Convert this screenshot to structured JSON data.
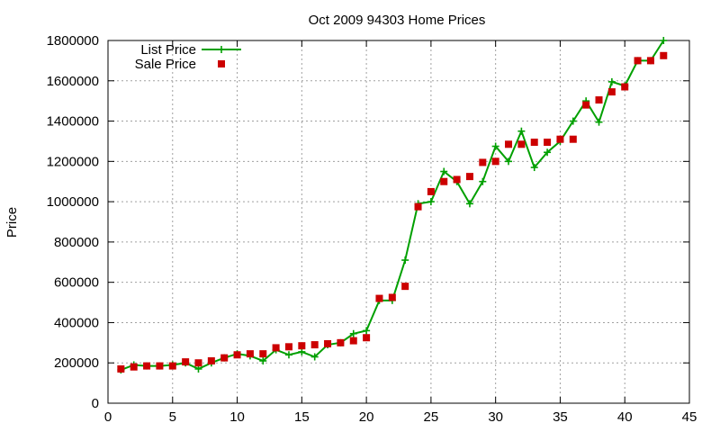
{
  "chart_data": {
    "type": "line",
    "title": "Oct 2009 94303 Home Prices",
    "xlabel": "",
    "ylabel": "Price",
    "xlim": [
      0,
      45
    ],
    "ylim": [
      0,
      1800000
    ],
    "x_ticks": [
      "0",
      "5",
      "10",
      "15",
      "20",
      "25",
      "30",
      "35",
      "40",
      "45"
    ],
    "y_ticks": [
      "0",
      "200000",
      "400000",
      "600000",
      "800000",
      "1000000",
      "1200000",
      "1400000",
      "1600000",
      "1800000"
    ],
    "grid": true,
    "legend_position": "top-left",
    "series": [
      {
        "name": "List Price",
        "style": "line+cross",
        "color": "#00a000",
        "x": [
          1,
          2,
          3,
          4,
          5,
          6,
          7,
          8,
          9,
          10,
          11,
          12,
          13,
          14,
          15,
          16,
          17,
          18,
          19,
          20,
          21,
          22,
          23,
          24,
          25,
          26,
          27,
          28,
          29,
          30,
          31,
          32,
          33,
          34,
          35,
          36,
          37,
          38,
          39,
          40,
          41,
          42,
          43
        ],
        "y": [
          165000,
          190000,
          185000,
          185000,
          190000,
          200000,
          170000,
          200000,
          225000,
          245000,
          235000,
          210000,
          265000,
          240000,
          255000,
          230000,
          290000,
          300000,
          345000,
          360000,
          510000,
          510000,
          710000,
          990000,
          1000000,
          1150000,
          1100000,
          990000,
          1100000,
          1275000,
          1200000,
          1350000,
          1170000,
          1245000,
          1300000,
          1400000,
          1500000,
          1395000,
          1595000,
          1575000,
          1700000,
          1700000,
          1800000
        ]
      },
      {
        "name": "Sale Price",
        "style": "square",
        "color": "#cc0000",
        "x": [
          1,
          2,
          3,
          4,
          5,
          6,
          7,
          8,
          9,
          10,
          11,
          12,
          13,
          14,
          15,
          16,
          17,
          18,
          19,
          20,
          21,
          22,
          23,
          24,
          25,
          26,
          27,
          28,
          29,
          30,
          31,
          32,
          33,
          34,
          35,
          36,
          37,
          38,
          39,
          40,
          41,
          42,
          43
        ],
        "y": [
          170000,
          180000,
          185000,
          185000,
          185000,
          205000,
          200000,
          210000,
          225000,
          240000,
          245000,
          245000,
          275000,
          280000,
          285000,
          290000,
          295000,
          300000,
          310000,
          325000,
          520000,
          525000,
          580000,
          975000,
          1050000,
          1100000,
          1110000,
          1125000,
          1195000,
          1200000,
          1285000,
          1285000,
          1295000,
          1295000,
          1310000,
          1310000,
          1480000,
          1505000,
          1545000,
          1570000,
          1700000,
          1700000,
          1725000
        ]
      }
    ]
  }
}
